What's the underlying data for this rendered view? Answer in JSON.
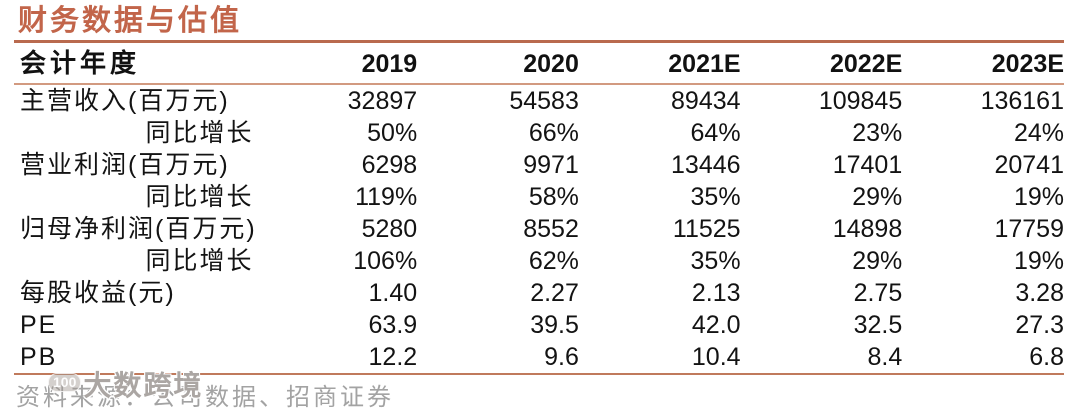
{
  "title": "财务数据与估值",
  "colors": {
    "accent_title": "#c2654a",
    "rule_top": "#b96a4e",
    "rule_header": "#d29a80",
    "rule_bottom": "#c07a5c",
    "source_text": "#a3a3a3"
  },
  "table": {
    "header": {
      "label": "会计年度",
      "years": [
        "2019",
        "2020",
        "2021E",
        "2022E",
        "2023E"
      ]
    },
    "rows": [
      {
        "label": "主营收入(百万元)",
        "indent": false,
        "values": [
          "32897",
          "54583",
          "89434",
          "109845",
          "136161"
        ]
      },
      {
        "label": "同比增长",
        "indent": true,
        "values": [
          "50%",
          "66%",
          "64%",
          "23%",
          "24%"
        ]
      },
      {
        "label": "营业利润(百万元)",
        "indent": false,
        "values": [
          "6298",
          "9971",
          "13446",
          "17401",
          "20741"
        ]
      },
      {
        "label": "同比增长",
        "indent": true,
        "values": [
          "119%",
          "58%",
          "35%",
          "29%",
          "19%"
        ]
      },
      {
        "label": "归母净利润(百万元)",
        "indent": false,
        "values": [
          "5280",
          "8552",
          "11525",
          "14898",
          "17759"
        ]
      },
      {
        "label": "同比增长",
        "indent": true,
        "values": [
          "106%",
          "62%",
          "35%",
          "29%",
          "19%"
        ]
      },
      {
        "label": "每股收益(元)",
        "indent": false,
        "values": [
          "1.40",
          "2.27",
          "2.13",
          "2.75",
          "3.28"
        ]
      },
      {
        "label": "PE",
        "indent": false,
        "values": [
          "63.9",
          "39.5",
          "42.0",
          "32.5",
          "27.3"
        ]
      },
      {
        "label": "PB",
        "indent": false,
        "values": [
          "12.2",
          "9.6",
          "10.4",
          "8.4",
          "6.8"
        ]
      }
    ]
  },
  "footer": {
    "source": "资料来源：公司数据、招商证券"
  },
  "watermark": {
    "badge": "100",
    "text": "大数跨境"
  },
  "chart_data": {
    "type": "table",
    "title": "财务数据与估值",
    "columns": [
      "会计年度",
      "2019",
      "2020",
      "2021E",
      "2022E",
      "2023E"
    ],
    "rows": [
      [
        "主营收入(百万元)",
        "32897",
        "54583",
        "89434",
        "109845",
        "136161"
      ],
      [
        "同比增长",
        "50%",
        "66%",
        "64%",
        "23%",
        "24%"
      ],
      [
        "营业利润(百万元)",
        "6298",
        "9971",
        "13446",
        "17401",
        "20741"
      ],
      [
        "同比增长",
        "119%",
        "58%",
        "35%",
        "29%",
        "19%"
      ],
      [
        "归母净利润(百万元)",
        "5280",
        "8552",
        "11525",
        "14898",
        "17759"
      ],
      [
        "同比增长",
        "106%",
        "62%",
        "35%",
        "29%",
        "19%"
      ],
      [
        "每股收益(元)",
        "1.40",
        "2.27",
        "2.13",
        "2.75",
        "3.28"
      ],
      [
        "PE",
        "63.9",
        "39.5",
        "42.0",
        "32.5",
        "27.3"
      ],
      [
        "PB",
        "12.2",
        "9.6",
        "10.4",
        "8.4",
        "6.8"
      ]
    ]
  }
}
